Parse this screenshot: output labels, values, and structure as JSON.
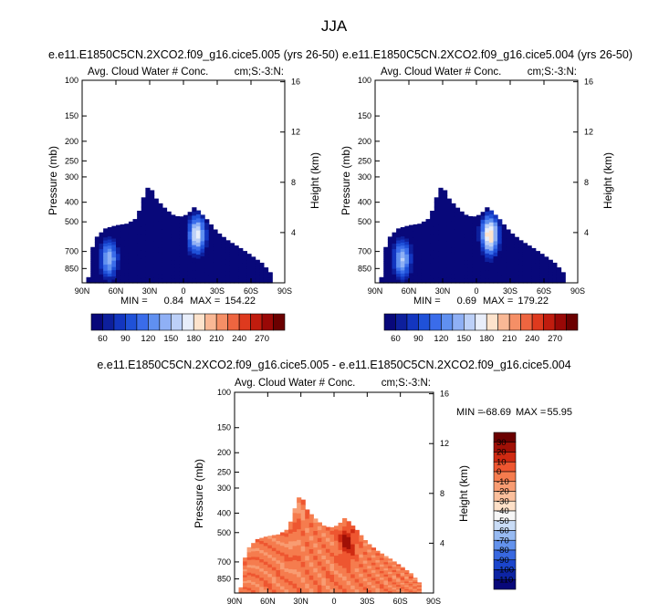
{
  "figure": {
    "main_title": "JJA"
  },
  "chart_data": [
    {
      "type": "contour",
      "title": "e.e11.E1850C5CN.2XCO2.f09_g16.cice5.005 (yrs 26-50)",
      "left_label": "Avg. Cloud Water # Conc.",
      "right_label": "cm;S:-3:N:",
      "xlabel": "",
      "ylabel": "Pressure (mb)",
      "y2label": "Height (km)",
      "x_ticks": [
        "90N",
        "60N",
        "30N",
        "0",
        "30S",
        "60S",
        "90S"
      ],
      "y_ticks": [
        "100",
        "150",
        "200",
        "250",
        "300",
        "400",
        "500",
        "700",
        "850"
      ],
      "y_tick_values": [
        100,
        150,
        200,
        250,
        300,
        400,
        500,
        700,
        850
      ],
      "y2_ticks": [
        "16",
        "12",
        "8",
        "4"
      ],
      "y2_tick_values_km": [
        16,
        12,
        8,
        4
      ],
      "xlim": [
        90,
        -90
      ],
      "ylim_mb": [
        100,
        1000
      ],
      "min_label": "MIN =",
      "min_value": "0.84",
      "max_label": "MAX =",
      "max_value": "154.22",
      "colorbar_labels": [
        "60",
        "90",
        "120",
        "150",
        "180",
        "210",
        "240",
        "270"
      ],
      "colorbar_levels": [
        45,
        60,
        75,
        90,
        105,
        120,
        135,
        150,
        165,
        180,
        195,
        210,
        225,
        240,
        255,
        270
      ],
      "colorbar_colors": [
        "#08087a",
        "#0d1f9c",
        "#1336c0",
        "#1f51d8",
        "#3a6cea",
        "#6090f0",
        "#8fb0f5",
        "#bcd0f8",
        "#e8eefa",
        "#fde3cc",
        "#f9b895",
        "#f58f66",
        "#ee6540",
        "#de3a1e",
        "#c01c0e",
        "#990806",
        "#6b0000"
      ],
      "field": {
        "background_value": 0.84,
        "mean_cap_top_mb": [
          {
            "lat": 85,
            "p": 1000
          },
          {
            "lat": 82,
            "p": 700
          },
          {
            "lat": 78,
            "p": 600
          },
          {
            "lat": 70,
            "p": 540
          },
          {
            "lat": 60,
            "p": 520
          },
          {
            "lat": 50,
            "p": 510
          },
          {
            "lat": 42,
            "p": 480
          },
          {
            "lat": 38,
            "p": 420
          },
          {
            "lat": 34,
            "p": 350
          },
          {
            "lat": 30,
            "p": 330
          },
          {
            "lat": 25,
            "p": 380
          },
          {
            "lat": 18,
            "p": 420
          },
          {
            "lat": 10,
            "p": 460
          },
          {
            "lat": 5,
            "p": 470
          },
          {
            "lat": 0,
            "p": 470
          },
          {
            "lat": -5,
            "p": 450
          },
          {
            "lat": -10,
            "p": 420
          },
          {
            "lat": -15,
            "p": 450
          },
          {
            "lat": -20,
            "p": 480
          },
          {
            "lat": -30,
            "p": 560
          },
          {
            "lat": -40,
            "p": 620
          },
          {
            "lat": -50,
            "p": 670
          },
          {
            "lat": -60,
            "p": 730
          },
          {
            "lat": -70,
            "p": 800
          },
          {
            "lat": -78,
            "p": 900
          },
          {
            "lat": -80,
            "p": 1000
          }
        ],
        "hotspots": [
          {
            "lat": 66,
            "p": 760,
            "peak": 130
          },
          {
            "lat": -12,
            "p": 580,
            "peak": 154
          }
        ]
      }
    },
    {
      "type": "contour",
      "title": "e.e11.E1850C5CN.2XCO2.f09_g16.cice5.004 (yrs 26-50)",
      "left_label": "Avg. Cloud Water # Conc.",
      "right_label": "cm;S:-3:N:",
      "xlabel": "",
      "ylabel": "Pressure (mb)",
      "y2label": "Height (km)",
      "x_ticks": [
        "90N",
        "60N",
        "30N",
        "0",
        "30S",
        "60S",
        "90S"
      ],
      "y_ticks": [
        "100",
        "150",
        "200",
        "250",
        "300",
        "400",
        "500",
        "700",
        "850"
      ],
      "y_tick_values": [
        100,
        150,
        200,
        250,
        300,
        400,
        500,
        700,
        850
      ],
      "y2_ticks": [
        "16",
        "12",
        "8",
        "4"
      ],
      "y2_tick_values_km": [
        16,
        12,
        8,
        4
      ],
      "xlim": [
        90,
        -90
      ],
      "ylim_mb": [
        100,
        1000
      ],
      "min_label": "MIN =",
      "min_value": "0.69",
      "max_label": "MAX =",
      "max_value": "179.22",
      "colorbar_labels": [
        "60",
        "90",
        "120",
        "150",
        "180",
        "210",
        "240",
        "270"
      ],
      "colorbar_levels": [
        45,
        60,
        75,
        90,
        105,
        120,
        135,
        150,
        165,
        180,
        195,
        210,
        225,
        240,
        255,
        270
      ],
      "colorbar_colors": [
        "#08087a",
        "#0d1f9c",
        "#1336c0",
        "#1f51d8",
        "#3a6cea",
        "#6090f0",
        "#8fb0f5",
        "#bcd0f8",
        "#e8eefa",
        "#fde3cc",
        "#f9b895",
        "#f58f66",
        "#ee6540",
        "#de3a1e",
        "#c01c0e",
        "#990806",
        "#6b0000"
      ],
      "field": {
        "background_value": 0.69,
        "mean_cap_top_mb": [
          {
            "lat": 85,
            "p": 1000
          },
          {
            "lat": 82,
            "p": 700
          },
          {
            "lat": 78,
            "p": 600
          },
          {
            "lat": 70,
            "p": 540
          },
          {
            "lat": 60,
            "p": 520
          },
          {
            "lat": 50,
            "p": 510
          },
          {
            "lat": 42,
            "p": 480
          },
          {
            "lat": 38,
            "p": 420
          },
          {
            "lat": 34,
            "p": 350
          },
          {
            "lat": 30,
            "p": 330
          },
          {
            "lat": 25,
            "p": 380
          },
          {
            "lat": 18,
            "p": 420
          },
          {
            "lat": 10,
            "p": 460
          },
          {
            "lat": 5,
            "p": 470
          },
          {
            "lat": 0,
            "p": 470
          },
          {
            "lat": -5,
            "p": 450
          },
          {
            "lat": -10,
            "p": 420
          },
          {
            "lat": -15,
            "p": 450
          },
          {
            "lat": -20,
            "p": 480
          },
          {
            "lat": -30,
            "p": 560
          },
          {
            "lat": -40,
            "p": 620
          },
          {
            "lat": -50,
            "p": 670
          },
          {
            "lat": -60,
            "p": 730
          },
          {
            "lat": -70,
            "p": 800
          },
          {
            "lat": -78,
            "p": 900
          },
          {
            "lat": -80,
            "p": 1000
          }
        ],
        "hotspots": [
          {
            "lat": 66,
            "p": 760,
            "peak": 135
          },
          {
            "lat": -12,
            "p": 580,
            "peak": 179
          }
        ]
      }
    },
    {
      "type": "contour",
      "title": "e.e11.E1850C5CN.2XCO2.f09_g16.cice5.005 - e.e11.E1850C5CN.2XCO2.f09_g16.cice5.004",
      "left_label": "Avg. Cloud Water # Conc.",
      "right_label": "cm;S:-3:N:",
      "xlabel": "",
      "ylabel": "Pressure (mb)",
      "y2label": "Height (km)",
      "x_ticks": [
        "90N",
        "60N",
        "30N",
        "0",
        "30S",
        "60S",
        "90S"
      ],
      "y_ticks": [
        "100",
        "150",
        "200",
        "250",
        "300",
        "400",
        "500",
        "700",
        "850"
      ],
      "y_tick_values": [
        100,
        150,
        200,
        250,
        300,
        400,
        500,
        700,
        850
      ],
      "y2_ticks": [
        "16",
        "12",
        "8",
        "4"
      ],
      "y2_tick_values_km": [
        16,
        12,
        8,
        4
      ],
      "xlim": [
        90,
        -90
      ],
      "ylim_mb": [
        100,
        1000
      ],
      "min_label": "MIN =",
      "min_value": "-68.69",
      "max_label": "MAX =",
      "max_value": "55.95",
      "colorbar_labels": [
        "30",
        "20",
        "10",
        "0",
        "-10",
        "-20",
        "-30",
        "-40",
        "-50",
        "-60",
        "-70",
        "-80",
        "-90",
        "-100",
        "-110"
      ],
      "colorbar_levels": [
        30,
        20,
        10,
        0,
        -10,
        -20,
        -30,
        -40,
        -50,
        -60,
        -70,
        -80,
        -90,
        -100,
        -110
      ],
      "colorbar_colors": [
        "#6b0000",
        "#a01006",
        "#cf2a12",
        "#ee5630",
        "#f57c4e",
        "#f89c72",
        "#fbbf9c",
        "#fde0c8",
        "#f6f6f6",
        "#c9dcf6",
        "#97baf2",
        "#6392ec",
        "#3868e0",
        "#1b45cc",
        "#0d24a4",
        "#08087a"
      ],
      "field": {
        "background_value": -5,
        "mean_cap_top_mb": [
          {
            "lat": 85,
            "p": 1000
          },
          {
            "lat": 82,
            "p": 700
          },
          {
            "lat": 78,
            "p": 600
          },
          {
            "lat": 70,
            "p": 540
          },
          {
            "lat": 60,
            "p": 520
          },
          {
            "lat": 50,
            "p": 510
          },
          {
            "lat": 42,
            "p": 480
          },
          {
            "lat": 38,
            "p": 420
          },
          {
            "lat": 34,
            "p": 350
          },
          {
            "lat": 30,
            "p": 320
          },
          {
            "lat": 25,
            "p": 380
          },
          {
            "lat": 18,
            "p": 420
          },
          {
            "lat": 10,
            "p": 460
          },
          {
            "lat": 5,
            "p": 470
          },
          {
            "lat": 0,
            "p": 470
          },
          {
            "lat": -5,
            "p": 450
          },
          {
            "lat": -10,
            "p": 420
          },
          {
            "lat": -15,
            "p": 450
          },
          {
            "lat": -20,
            "p": 480
          },
          {
            "lat": -30,
            "p": 560
          },
          {
            "lat": -40,
            "p": 620
          },
          {
            "lat": -50,
            "p": 670
          },
          {
            "lat": -60,
            "p": 730
          },
          {
            "lat": -70,
            "p": 800
          },
          {
            "lat": -78,
            "p": 900
          },
          {
            "lat": -80,
            "p": 1000
          }
        ],
        "hotspots": [
          {
            "lat": -12,
            "p": 560,
            "peak": 30
          }
        ]
      }
    }
  ]
}
